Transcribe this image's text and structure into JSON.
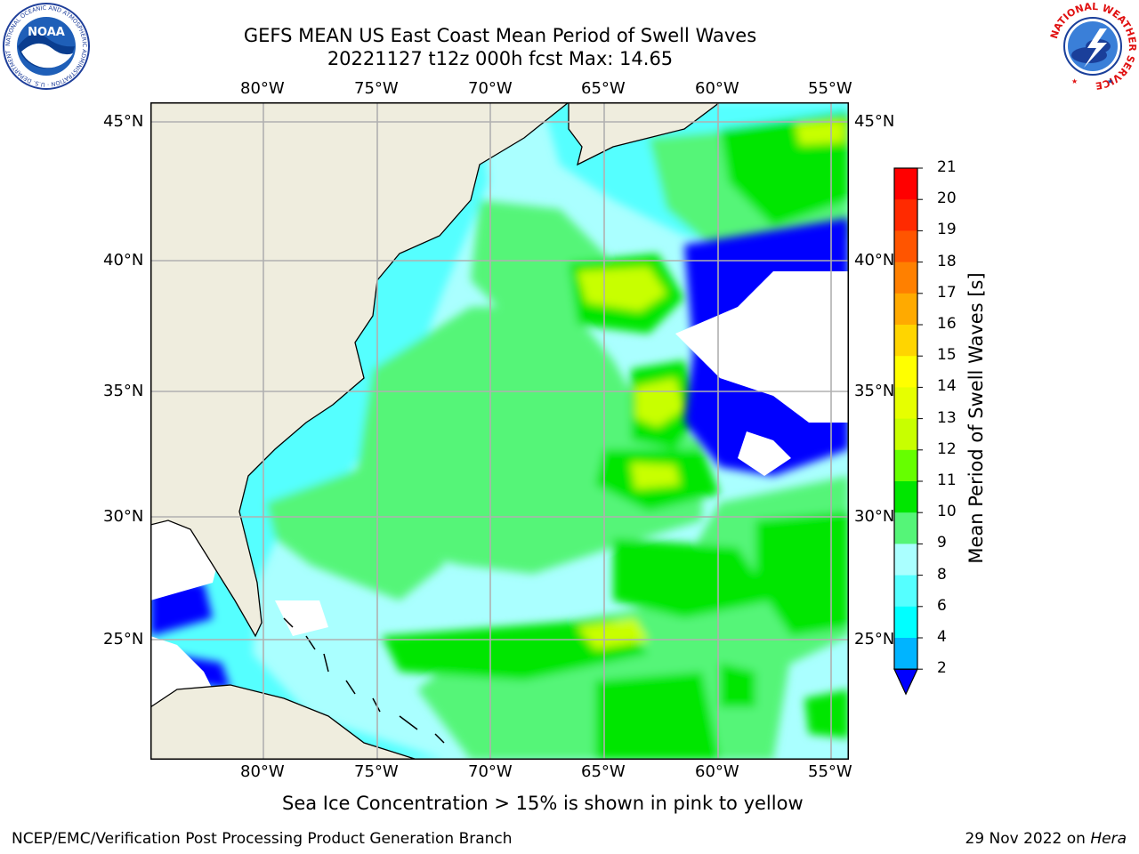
{
  "title_line1": "GEFS MEAN US East Coast Mean Period of Swell Waves",
  "title_line2": "20221127 t12z 000h fcst   Max: 14.65",
  "map": {
    "lon_ticks": [
      "80°W",
      "75°W",
      "70°W",
      "65°W",
      "60°W",
      "55°W"
    ],
    "lat_ticks": [
      "45°N",
      "40°N",
      "35°N",
      "30°N",
      "25°N"
    ],
    "land_color": "#efedde",
    "grid_color": "#b0b0b0"
  },
  "colorbar": {
    "label": "Mean Period of Swell Waves [s]",
    "ticks": [
      "21",
      "20",
      "19",
      "18",
      "17",
      "16",
      "15",
      "14",
      "13",
      "12",
      "11",
      "10",
      "9",
      "8",
      "6",
      "4",
      "2"
    ],
    "colors": [
      "#ff0000",
      "#ff2a00",
      "#ff5500",
      "#ff8000",
      "#ffaa00",
      "#ffd500",
      "#ffff00",
      "#e6ff00",
      "#c8ff00",
      "#66ff00",
      "#00e600",
      "#55f578",
      "#aaffff",
      "#55ffff",
      "#00ffff",
      "#00b4ff",
      "#0000ff"
    ]
  },
  "note": "Sea Ice Concentration > 15% is shown in pink to yellow",
  "footer_left": "NCEP/EMC/Verification Post Processing Product Generation Branch",
  "footer_date": "29 Nov 2022 on ",
  "footer_host": "Hera",
  "logos": {
    "left": "NOAA",
    "left_ring": "NATIONAL OCEANIC AND ATMOSPHERIC ADMINISTRATION · U.S. DEPARTMENT OF COMMERCE",
    "right_ring": "NATIONAL WEATHER SERVICE"
  }
}
